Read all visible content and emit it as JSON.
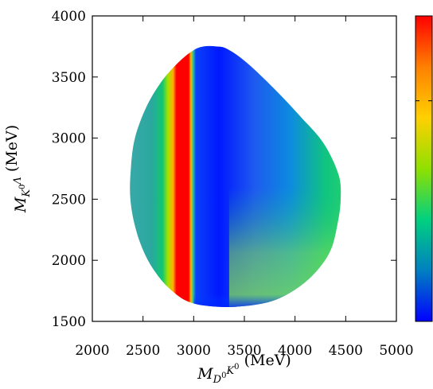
{
  "chart_data": {
    "type": "heatmap",
    "title": "",
    "xlabel": {
      "symbol": "M",
      "subscript_parts": [
        {
          "text": "D",
          "sup": "0"
        },
        {
          "text": "K",
          "sup": "0"
        }
      ],
      "unit": "(MeV)"
    },
    "ylabel": {
      "symbol": "M",
      "subscript_parts": [
        {
          "text": "K",
          "sup": "0"
        },
        {
          "text": "Λ",
          "sup": ""
        }
      ],
      "unit": "(MeV)"
    },
    "xlim": [
      2000,
      5000
    ],
    "ylim": [
      1500,
      4000
    ],
    "x_ticks": [
      2000,
      2500,
      3000,
      3500,
      4000,
      4500,
      5000
    ],
    "y_ticks": [
      1500,
      2000,
      2500,
      3000,
      3500,
      4000
    ],
    "x_tick_labels": [
      "2000",
      "2500",
      "3000",
      "3500",
      "4000",
      "4500",
      "5000"
    ],
    "y_tick_labels": [
      "1500",
      "2000",
      "2500",
      "3000",
      "3500",
      "4000"
    ],
    "grid": false,
    "colorbar": {
      "position": "right",
      "colors_bottom_to_top": [
        "#0000ff",
        "#0080c0",
        "#00d080",
        "#90e000",
        "#ffd000",
        "#ff8000",
        "#ff0000"
      ],
      "tick_count": 1
    },
    "region_boundary": {
      "description": "Dalitz plot kinematic boundary",
      "points": [
        [
          3220,
          3750
        ],
        [
          3330,
          3730
        ],
        [
          3520,
          3620
        ],
        [
          3800,
          3400
        ],
        [
          4050,
          3180
        ],
        [
          4280,
          2960
        ],
        [
          4430,
          2700
        ],
        [
          4450,
          2500
        ],
        [
          4420,
          2300
        ],
        [
          4350,
          2080
        ],
        [
          4200,
          1900
        ],
        [
          4000,
          1760
        ],
        [
          3750,
          1660
        ],
        [
          3420,
          1620
        ],
        [
          3150,
          1625
        ],
        [
          2950,
          1660
        ],
        [
          2800,
          1740
        ],
        [
          2660,
          1860
        ],
        [
          2530,
          2030
        ],
        [
          2430,
          2250
        ],
        [
          2375,
          2500
        ],
        [
          2380,
          2750
        ],
        [
          2420,
          3000
        ],
        [
          2530,
          3250
        ],
        [
          2680,
          3460
        ],
        [
          2850,
          3620
        ],
        [
          3000,
          3720
        ],
        [
          3100,
          3750
        ]
      ]
    },
    "features": {
      "resonance_band": {
        "x_center": 2890,
        "width": 55,
        "color": "#ff0000"
      },
      "background_left": "#3ba8a8",
      "background_center": "#1e5aef",
      "background_right_low": "#80e050",
      "background_right_mid": "#10c480"
    }
  }
}
